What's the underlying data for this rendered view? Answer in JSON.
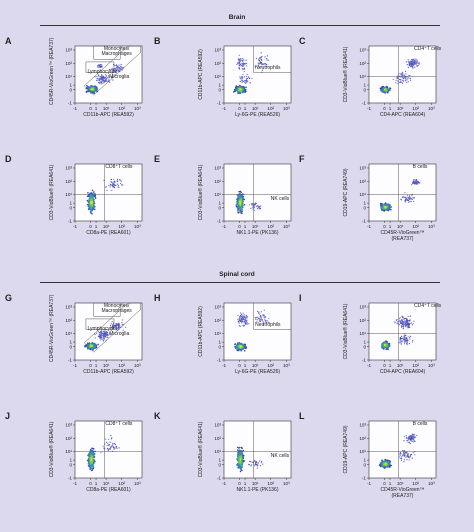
{
  "sections": [
    {
      "title": "Brain"
    },
    {
      "title": "Spinal cord"
    }
  ],
  "chart_data": [
    {
      "type": "scatter",
      "id": "A",
      "title": "",
      "xlabel": "CD11b-APC (REA592)",
      "ylabel": "CD45R-VioGreen™ (REA737)",
      "xticks": [
        "-1",
        "0",
        "1",
        "10¹",
        "10²",
        "10³"
      ],
      "yticks": [
        "-1",
        "0",
        "1",
        "10¹",
        "10²",
        "10³"
      ],
      "gates": [
        "Monocytes/ Macrophages",
        "Lymphocytes",
        "Microglia"
      ]
    },
    {
      "type": "scatter",
      "id": "B",
      "title": "",
      "xlabel": "Ly-6G-PE (REA526)",
      "ylabel": "CD11b-APC (REA592)",
      "xticks": [
        "-1",
        "0",
        "1",
        "10¹",
        "10²",
        "10³"
      ],
      "yticks": [
        "-1",
        "0",
        "1",
        "10¹",
        "10²",
        "10³"
      ],
      "gates": [
        "Neutrophils"
      ]
    },
    {
      "type": "scatter",
      "id": "C",
      "title": "",
      "xlabel": "CD4-APC (REA604)",
      "ylabel": "CD3-VioBlue® (REA641)",
      "xticks": [
        "-1",
        "0",
        "1",
        "10¹",
        "10²",
        "10³"
      ],
      "yticks": [
        "-1",
        "0",
        "1",
        "10¹",
        "10²",
        "10³"
      ],
      "gates": [
        "CD4⁺T cells"
      ]
    },
    {
      "type": "scatter",
      "id": "D",
      "title": "",
      "xlabel": "CD8a-PE (REA601)",
      "ylabel": "CD3-VioBlue® (REA641)",
      "xticks": [
        "-1",
        "0",
        "1",
        "10¹",
        "10²",
        "10³"
      ],
      "yticks": [
        "-1",
        "0",
        "1",
        "10¹",
        "10²",
        "10³"
      ],
      "gates": [
        "CD8⁺T cells"
      ]
    },
    {
      "type": "scatter",
      "id": "E",
      "title": "",
      "xlabel": "NK1.1-PE (PK136)",
      "ylabel": "CD3-VioBlue® (REA641)",
      "xticks": [
        "-1",
        "0",
        "1",
        "10¹",
        "10²",
        "10³"
      ],
      "yticks": [
        "-1",
        "0",
        "1",
        "10¹",
        "10²",
        "10³"
      ],
      "gates": [
        "NK cells"
      ]
    },
    {
      "type": "scatter",
      "id": "F",
      "title": "",
      "xlabel": "CD45R-VioGreen™ (REA737)",
      "ylabel": "CD19-APC (REA749)",
      "xticks": [
        "-1",
        "0",
        "1",
        "10¹",
        "10²",
        "10³"
      ],
      "yticks": [
        "-1",
        "0",
        "1",
        "10¹",
        "10²",
        "10³"
      ],
      "gates": [
        "B cells"
      ]
    },
    {
      "type": "scatter",
      "id": "G",
      "title": "",
      "xlabel": "CD11b-APC (REA592)",
      "ylabel": "CD45R-VioGreen™ (REA737)",
      "xticks": [
        "-1",
        "0",
        "1",
        "10¹",
        "10²",
        "10³"
      ],
      "yticks": [
        "-1",
        "0",
        "1",
        "10¹",
        "10²",
        "10³"
      ],
      "gates": [
        "Monocytes/ Macrophages",
        "Lymphocytes",
        "Microglia"
      ]
    },
    {
      "type": "scatter",
      "id": "H",
      "title": "",
      "xlabel": "Ly-6G-PE (REA526)",
      "ylabel": "CD11b-APC (REA592)",
      "xticks": [
        "-1",
        "0",
        "1",
        "10¹",
        "10²",
        "10³"
      ],
      "yticks": [
        "-1",
        "0",
        "1",
        "10¹",
        "10²",
        "10³"
      ],
      "gates": [
        "Neutrophils"
      ]
    },
    {
      "type": "scatter",
      "id": "I",
      "title": "",
      "xlabel": "CD4-APC (REA604)",
      "ylabel": "CD3-VioBlue® (REA641)",
      "xticks": [
        "-1",
        "0",
        "1",
        "10¹",
        "10²",
        "10³"
      ],
      "yticks": [
        "-1",
        "0",
        "1",
        "10¹",
        "10²",
        "10³"
      ],
      "gates": [
        "CD4⁺T cells"
      ]
    },
    {
      "type": "scatter",
      "id": "J",
      "title": "",
      "xlabel": "CD8a-PE (REA601)",
      "ylabel": "CD3-VioBlue® (REA641)",
      "xticks": [
        "-1",
        "0",
        "1",
        "10¹",
        "10²",
        "10³"
      ],
      "yticks": [
        "-1",
        "0",
        "1",
        "10¹",
        "10²",
        "10³"
      ],
      "gates": [
        "CD8⁺T cells"
      ]
    },
    {
      "type": "scatter",
      "id": "K",
      "title": "",
      "xlabel": "NK1.1-PE (PK136)",
      "ylabel": "CD3-VioBlue® (REA641)",
      "xticks": [
        "-1",
        "0",
        "1",
        "10¹",
        "10²",
        "10³"
      ],
      "yticks": [
        "-1",
        "0",
        "1",
        "10¹",
        "10²",
        "10³"
      ],
      "gates": [
        "NK cells"
      ]
    },
    {
      "type": "scatter",
      "id": "L",
      "title": "",
      "xlabel": "CD45R-VioGreen™ (REA737)",
      "ylabel": "CD19-APC (REA749)",
      "xticks": [
        "-1",
        "0",
        "1",
        "10¹",
        "10²",
        "10³"
      ],
      "yticks": [
        "-1",
        "0",
        "1",
        "10¹",
        "10²",
        "10³"
      ],
      "gates": [
        "B cells"
      ]
    }
  ]
}
